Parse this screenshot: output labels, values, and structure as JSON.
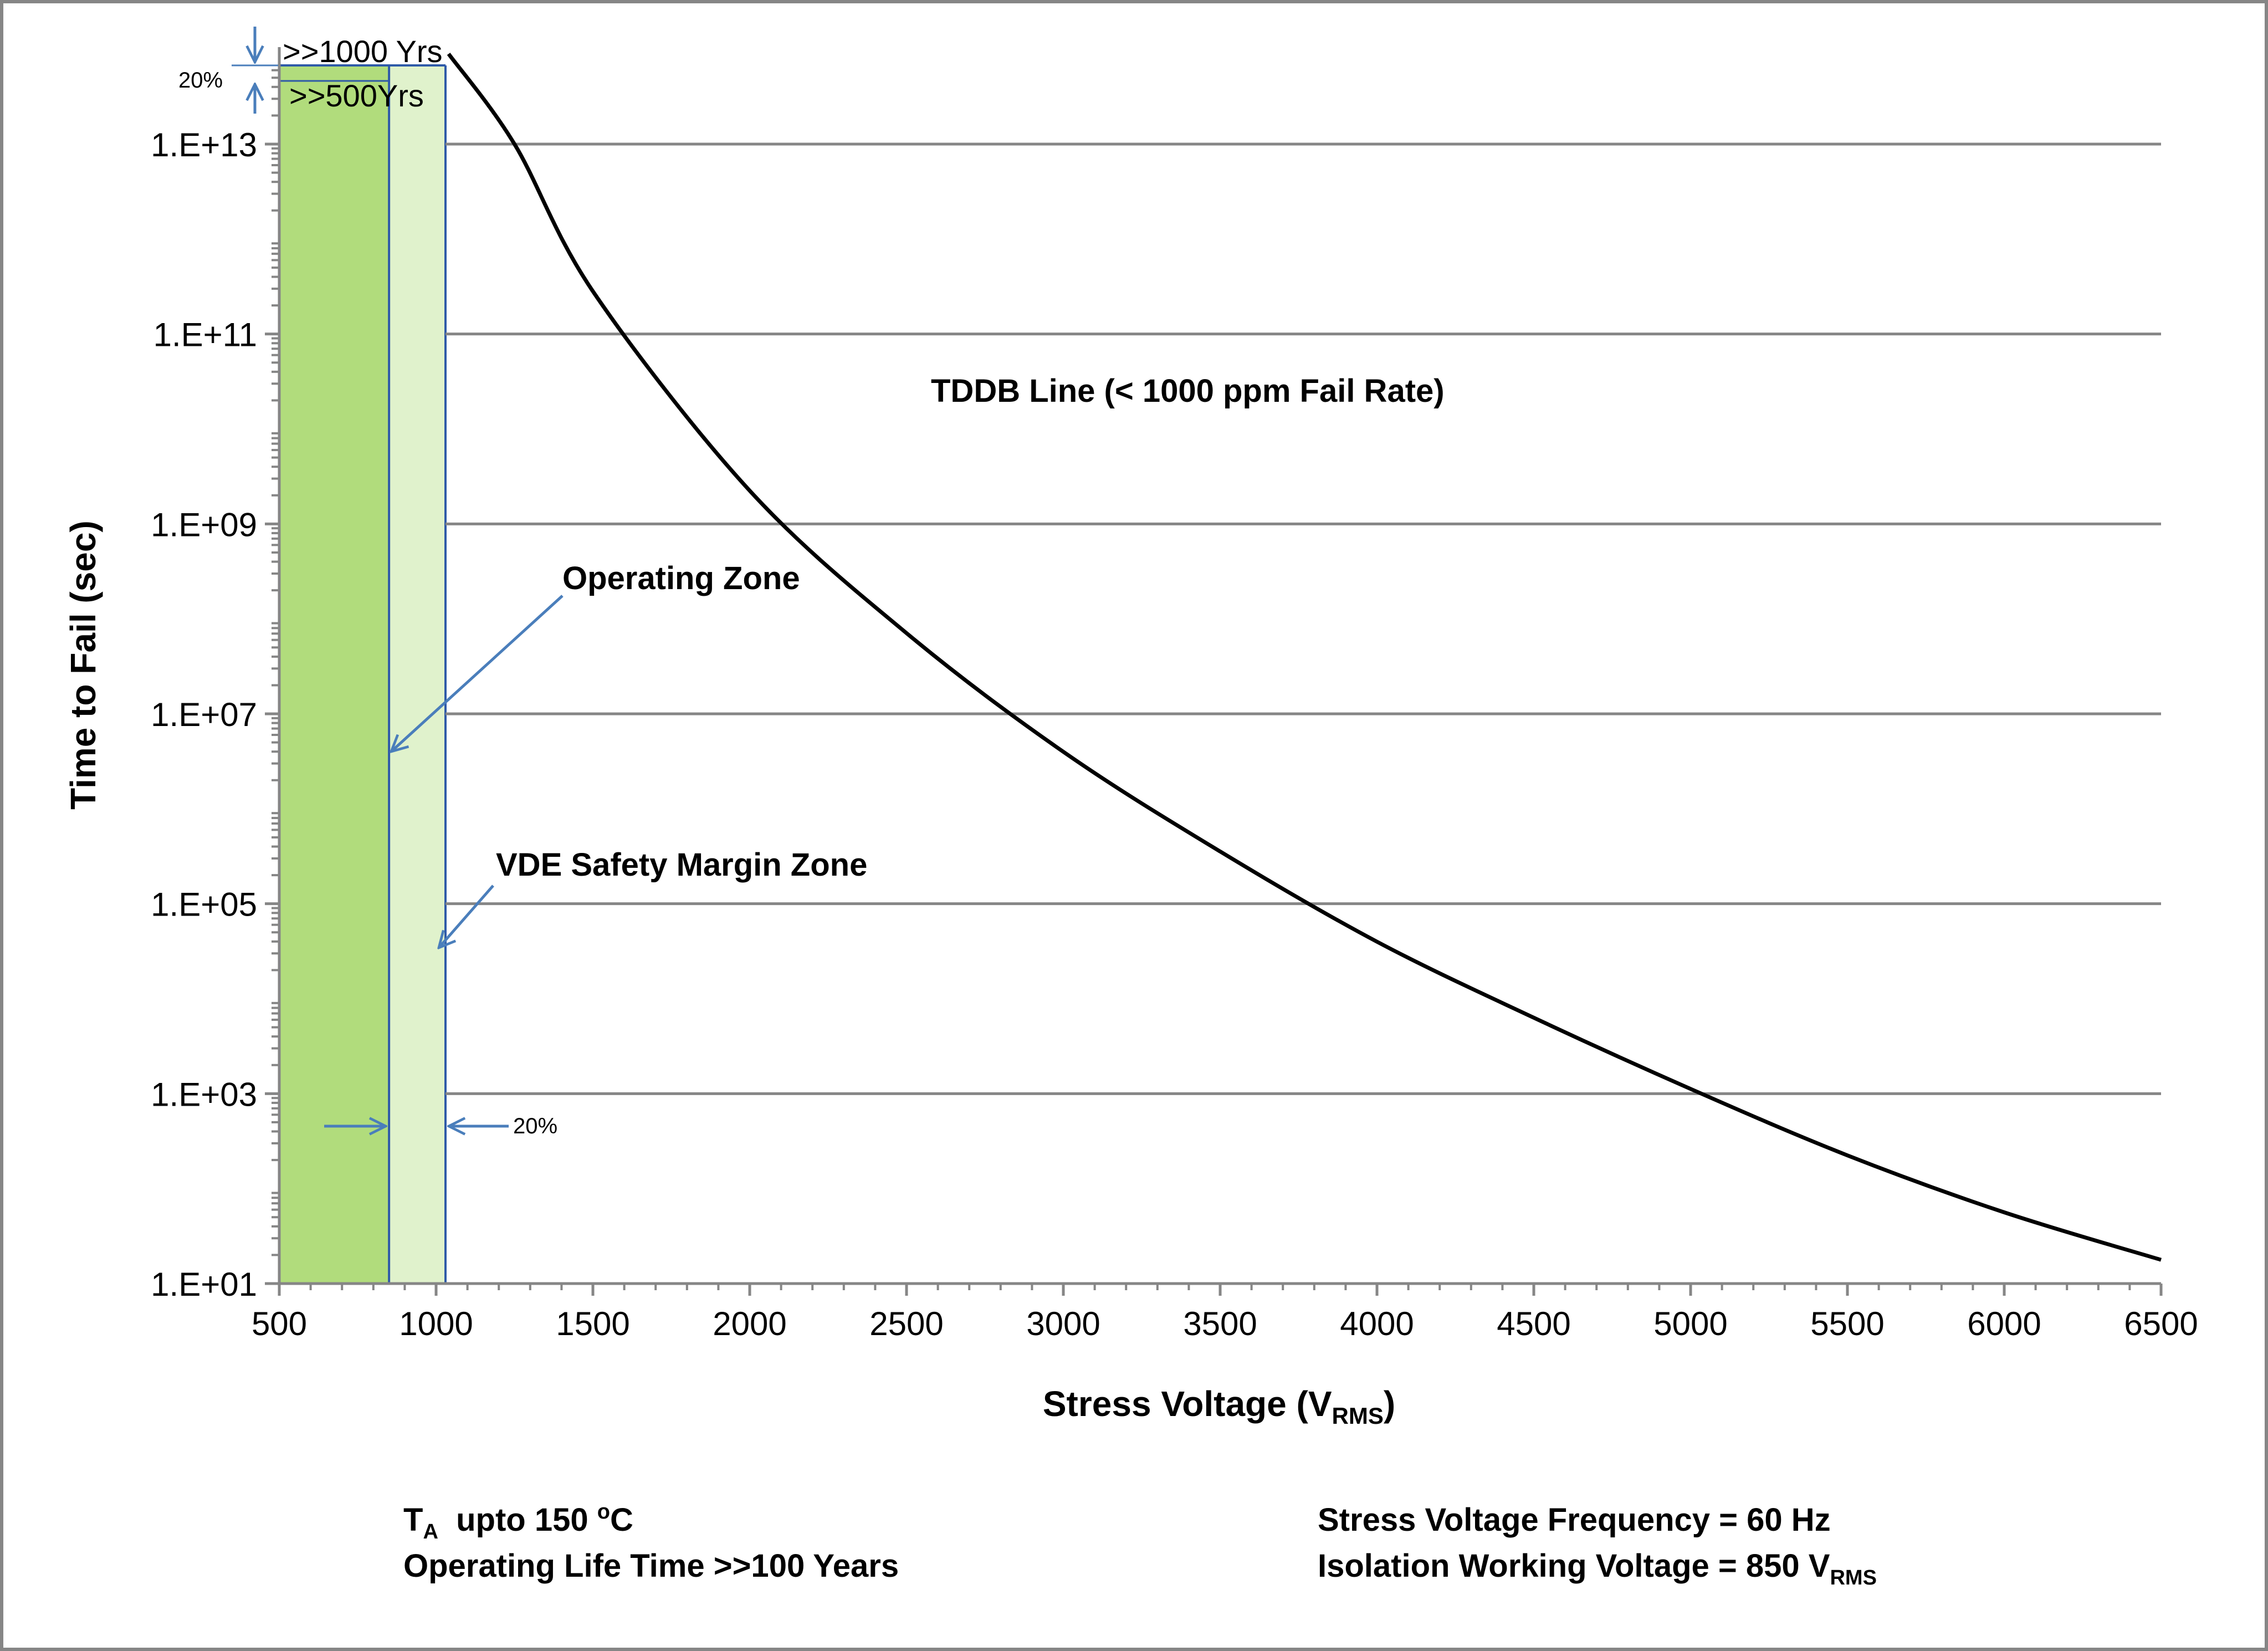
{
  "chart_data": {
    "type": "line",
    "title": "",
    "xlabel": "Stress Voltage (V",
    "xlabel_sub": "RMS",
    "xlabel_end": ")",
    "ylabel": "Time to Fail (sec)",
    "xlim": [
      500,
      6500
    ],
    "ylim_log10": [
      1,
      13.8
    ],
    "x_tick_labels": [
      "500",
      "1000",
      "1500",
      "2000",
      "2500",
      "3000",
      "3500",
      "4000",
      "4500",
      "5000",
      "5500",
      "6000",
      "6500"
    ],
    "y_tick_labels": [
      "1.E+01",
      "1.E+03",
      "1.E+05",
      "1.E+07",
      "1.E+09",
      "1.E+11",
      "1.E+13"
    ],
    "grid": "horizontal major lines",
    "series": [
      {
        "name": "TDDB Line (< 1000 ppm Fail Rate)",
        "color": "#000000",
        "x": [
          1040,
          1250,
          1500,
          2000,
          2500,
          3000,
          3500,
          4000,
          4500,
          5000,
          5500,
          6000,
          6500
        ],
        "log10_y": [
          13.95,
          13.0,
          11.45,
          9.35,
          7.85,
          6.6,
          5.55,
          4.6,
          3.8,
          3.05,
          2.35,
          1.75,
          1.25
        ]
      }
    ],
    "zones": [
      {
        "name": "Operating Zone",
        "x_start": 500,
        "x_end": 850,
        "color": "#b1dc7c"
      },
      {
        "name": "VDE Safety Margin Zone",
        "x_start": 850,
        "x_end": 1030,
        "color": "#e0f2cc"
      }
    ],
    "annotations": {
      "tddb_label": "TDDB Line (< 1000 ppm Fail Rate)",
      "operating_zone_label": "Operating  Zone",
      "vde_zone_label": "VDE Safety Margin Zone",
      "top_1000_years": ">>1000 Yrs",
      "top_500_years": ">>500Yrs",
      "margin_pct_top": "20%",
      "margin_pct_bottom": "20%"
    },
    "notes": {
      "ta_prefix": "T",
      "ta_sub": "A",
      "ta_mid": "  upto 150 ",
      "ta_sup": "o",
      "ta_end": "C",
      "operating_life": "Operating Life Time >>100 Years",
      "frequency": "Stress Voltage Frequency = 60 Hz",
      "isolation_prefix": "Isolation Working Voltage = 850 V",
      "isolation_sub": "RMS"
    },
    "colors": {
      "axis": "#868686",
      "grid": "#868686",
      "arrow": "#4a7ebb",
      "curve": "#000000",
      "border": "#868686"
    }
  }
}
